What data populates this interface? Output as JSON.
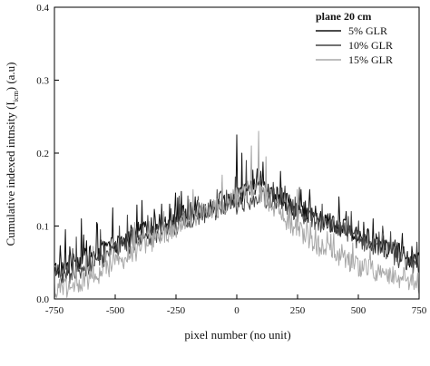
{
  "chart_data": {
    "type": "line",
    "title": "",
    "xlabel": "pixel number (no unit)",
    "ylabel": "Cumulative indexed intnsity (I",
    "ylabel_sub": "icm",
    "ylabel_suffix": ") (a.u)",
    "xlim": [
      -750,
      750
    ],
    "ylim": [
      0.0,
      0.4
    ],
    "x_ticks": [
      -750,
      -500,
      -250,
      0,
      250,
      500,
      750
    ],
    "y_ticks": [
      0.0,
      0.1,
      0.2,
      0.3,
      0.4
    ],
    "x_tick_labels": [
      "-750",
      "-500",
      "-250",
      "0",
      "250",
      "500",
      "750"
    ],
    "y_tick_labels": [
      "0.0",
      "0.1",
      "0.2",
      "0.3",
      "0.4"
    ],
    "grid": false,
    "legend": {
      "title": "plane 20 cm",
      "position": "top-right"
    },
    "x": [
      -750,
      -700,
      -650,
      -600,
      -550,
      -500,
      -450,
      -400,
      -350,
      -300,
      -250,
      -200,
      -150,
      -100,
      -50,
      0,
      50,
      100,
      150,
      200,
      250,
      300,
      350,
      400,
      450,
      500,
      550,
      600,
      650,
      700,
      750
    ],
    "series": [
      {
        "name": "5% GLR",
        "color": "#111111",
        "values": [
          0.04,
          0.045,
          0.052,
          0.06,
          0.068,
          0.075,
          0.082,
          0.09,
          0.098,
          0.105,
          0.112,
          0.118,
          0.122,
          0.128,
          0.135,
          0.14,
          0.15,
          0.155,
          0.14,
          0.132,
          0.125,
          0.118,
          0.11,
          0.102,
          0.095,
          0.088,
          0.08,
          0.072,
          0.065,
          0.058,
          0.05
        ],
        "peaks": [
          [
            -705,
            0.095
          ],
          [
            -640,
            0.11
          ],
          [
            -575,
            0.105
          ],
          [
            -510,
            0.125
          ],
          [
            -390,
            0.135
          ],
          [
            -310,
            0.13
          ],
          [
            -170,
            0.14
          ],
          [
            0,
            0.225
          ],
          [
            20,
            0.2
          ],
          [
            180,
            0.175
          ],
          [
            300,
            0.15
          ],
          [
            420,
            0.14
          ],
          [
            560,
            0.11
          ],
          [
            680,
            0.09
          ]
        ]
      },
      {
        "name": "10% GLR",
        "color": "#444444",
        "values": [
          0.03,
          0.033,
          0.04,
          0.048,
          0.056,
          0.065,
          0.072,
          0.08,
          0.088,
          0.095,
          0.102,
          0.108,
          0.115,
          0.12,
          0.125,
          0.13,
          0.135,
          0.14,
          0.135,
          0.128,
          0.12,
          0.112,
          0.105,
          0.098,
          0.09,
          0.082,
          0.075,
          0.068,
          0.06,
          0.05,
          0.042
        ],
        "peaks": [
          [
            -660,
            0.085
          ],
          [
            -560,
            0.095
          ],
          [
            -450,
            0.115
          ],
          [
            -230,
            0.13
          ],
          [
            -80,
            0.15
          ],
          [
            40,
            0.19
          ],
          [
            150,
            0.16
          ],
          [
            350,
            0.13
          ],
          [
            470,
            0.12
          ],
          [
            600,
            0.1
          ]
        ]
      },
      {
        "name": "15% GLR",
        "color": "#a8a8a8",
        "values": [
          0.012,
          0.014,
          0.02,
          0.028,
          0.038,
          0.048,
          0.058,
          0.068,
          0.078,
          0.088,
          0.098,
          0.108,
          0.118,
          0.122,
          0.128,
          0.14,
          0.15,
          0.145,
          0.125,
          0.11,
          0.095,
          0.082,
          0.07,
          0.06,
          0.052,
          0.045,
          0.04,
          0.035,
          0.03,
          0.025,
          0.02
        ],
        "peaks": [
          [
            -620,
            0.065
          ],
          [
            -420,
            0.105
          ],
          [
            -300,
            0.12
          ],
          [
            -180,
            0.15
          ],
          [
            -60,
            0.17
          ],
          [
            60,
            0.21
          ],
          [
            90,
            0.23
          ],
          [
            120,
            0.195
          ],
          [
            250,
            0.15
          ],
          [
            400,
            0.09
          ],
          [
            550,
            0.07
          ]
        ]
      }
    ]
  }
}
